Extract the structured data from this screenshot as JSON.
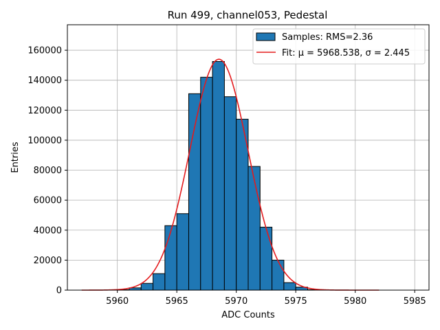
{
  "chart_data": {
    "type": "bar",
    "title": "Run 499, channel053, Pedestal",
    "xlabel": "ADC Counts",
    "ylabel": "Entries",
    "xlim": [
      5955.8,
      5986.2
    ],
    "ylim": [
      0,
      177000
    ],
    "xticks": [
      5960,
      5965,
      5970,
      5975,
      5980,
      5985
    ],
    "yticks": [
      0,
      20000,
      40000,
      60000,
      80000,
      100000,
      120000,
      140000,
      160000
    ],
    "grid": true,
    "legend_placement": "top-right",
    "colors": {
      "bars": "#1f77b4",
      "bar_edge": "#000000",
      "fit": "#e41a1c",
      "grid": "#b0b0b0"
    },
    "series": [
      {
        "name": "Samples: RMS=2.36",
        "kind": "histogram",
        "bin_width": 1,
        "bin_starts": [
          5960,
          5961,
          5962,
          5963,
          5964,
          5965,
          5966,
          5967,
          5968,
          5969,
          5970,
          5971,
          5972,
          5973,
          5974,
          5975,
          5976
        ],
        "values": [
          300,
          1500,
          4500,
          11000,
          43000,
          51000,
          131000,
          142000,
          152500,
          129000,
          114000,
          82500,
          42000,
          20000,
          5000,
          2000,
          300
        ]
      },
      {
        "name": "Fit: μ = 5968.538, σ = 2.445",
        "kind": "gaussian",
        "mu": 5968.538,
        "sigma": 2.445,
        "amplitude": 154000,
        "x_range": [
          5957,
          5982
        ]
      }
    ]
  }
}
